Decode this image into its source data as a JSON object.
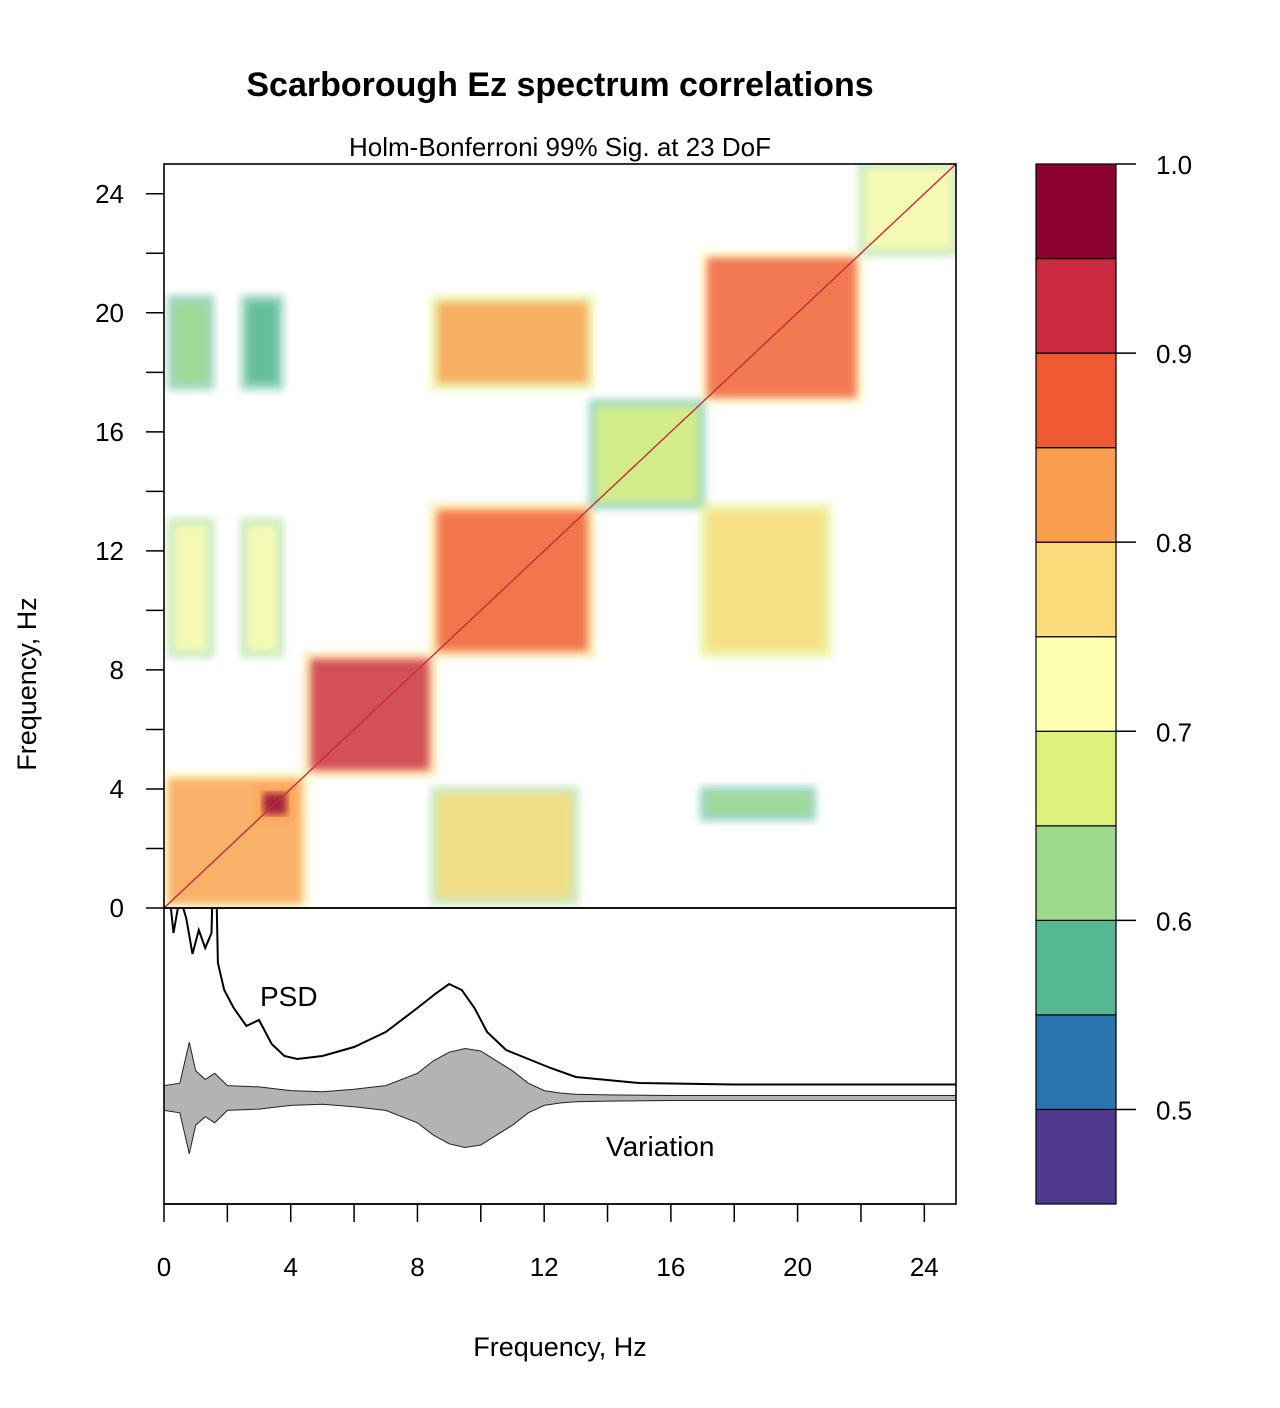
{
  "chart_data": {
    "type": "heatmap",
    "title": "Scarborough Ez spectrum correlations",
    "subtitle": "Holm-Bonferroni 99% Sig. at 23 DoF",
    "xlabel": "Frequency, Hz",
    "ylabel": "Frequency, Hz",
    "xlim": [
      0,
      25
    ],
    "ylim": [
      0,
      25
    ],
    "x_ticks": [
      "0",
      "4",
      "8",
      "12",
      "16",
      "20",
      "24"
    ],
    "y_ticks": [
      "0",
      "4",
      "8",
      "12",
      "16",
      "20",
      "24"
    ],
    "colorbar": {
      "range": [
        0.45,
        1.0
      ],
      "tick_labels": [
        "0.5",
        "0.6",
        "0.7",
        "0.8",
        "0.9",
        "1.0"
      ],
      "bins": [
        {
          "low": 0.45,
          "high": 0.5,
          "color": "#4f3a8f"
        },
        {
          "low": 0.5,
          "high": 0.55,
          "color": "#2c73b1"
        },
        {
          "low": 0.55,
          "high": 0.6,
          "color": "#55b892"
        },
        {
          "low": 0.6,
          "high": 0.65,
          "color": "#9fd98e"
        },
        {
          "low": 0.65,
          "high": 0.7,
          "color": "#def27b"
        },
        {
          "low": 0.7,
          "high": 0.75,
          "color": "#ffffb2"
        },
        {
          "low": 0.75,
          "high": 0.8,
          "color": "#fadc7a"
        },
        {
          "low": 0.8,
          "high": 0.85,
          "color": "#f99e4f"
        },
        {
          "low": 0.85,
          "high": 0.9,
          "color": "#ef5a32"
        },
        {
          "low": 0.9,
          "high": 0.95,
          "color": "#ca2a3f"
        },
        {
          "low": 0.95,
          "high": 1.0,
          "color": "#8c0233"
        }
      ]
    },
    "correlation_blocks": [
      {
        "x": [
          0,
          4.5
        ],
        "y": [
          0,
          4.5
        ],
        "level": 0.82
      },
      {
        "x": [
          3,
          4
        ],
        "y": [
          3,
          4
        ],
        "level": 0.95
      },
      {
        "x": [
          4.5,
          8.5
        ],
        "y": [
          4.5,
          8.5
        ],
        "level": 0.9
      },
      {
        "x": [
          8.5,
          13.5
        ],
        "y": [
          8.5,
          13.5
        ],
        "level": 0.88
      },
      {
        "x": [
          17,
          22
        ],
        "y": [
          17,
          22
        ],
        "level": 0.86
      },
      {
        "x": [
          13.5,
          17
        ],
        "y": [
          13.5,
          17
        ],
        "level": 0.68
      },
      {
        "x": [
          22,
          25
        ],
        "y": [
          22,
          25
        ],
        "level": 0.72
      },
      {
        "x": [
          8.5,
          13.5
        ],
        "y": [
          17.5,
          20.5
        ],
        "level": 0.8
      },
      {
        "x": [
          17,
          21
        ],
        "y": [
          8.5,
          13.5
        ],
        "level": 0.78
      },
      {
        "x": [
          0.2,
          1.5
        ],
        "y": [
          8.5,
          13
        ],
        "level": 0.72
      },
      {
        "x": [
          2.5,
          3.7
        ],
        "y": [
          8.5,
          13
        ],
        "level": 0.74
      },
      {
        "x": [
          0.2,
          1.5
        ],
        "y": [
          17.5,
          20.5
        ],
        "level": 0.6
      },
      {
        "x": [
          2.5,
          3.7
        ],
        "y": [
          17.5,
          20.5
        ],
        "level": 0.58
      },
      {
        "x": [
          8.5,
          13
        ],
        "y": [
          0.2,
          4
        ],
        "level": 0.75
      },
      {
        "x": [
          17,
          20.5
        ],
        "y": [
          3,
          4
        ],
        "level": 0.6
      }
    ],
    "lower_panel": {
      "annotations": [
        "PSD",
        "Variation"
      ],
      "series": [
        {
          "name": "PSD",
          "x": [
            0,
            0.1,
            0.3,
            0.5,
            0.7,
            0.9,
            1.1,
            1.3,
            1.5,
            1.6,
            1.7,
            1.9,
            2.2,
            2.6,
            3.0,
            3.4,
            3.8,
            4.2,
            5,
            6,
            7,
            8,
            8.6,
            9.0,
            9.4,
            9.8,
            10.2,
            10.8,
            11.5,
            12.2,
            13,
            15,
            18,
            21,
            25
          ],
          "y": [
            0.82,
            0.75,
            0.55,
            0.67,
            0.6,
            0.48,
            0.56,
            0.5,
            0.55,
            0.97,
            0.45,
            0.36,
            0.3,
            0.24,
            0.26,
            0.18,
            0.14,
            0.13,
            0.14,
            0.17,
            0.22,
            0.3,
            0.35,
            0.38,
            0.36,
            0.3,
            0.22,
            0.16,
            0.13,
            0.1,
            0.07,
            0.05,
            0.045,
            0.045,
            0.045
          ]
        },
        {
          "name": "Variation",
          "x": [
            0,
            0.5,
            0.8,
            1.0,
            1.3,
            1.6,
            2,
            3,
            4,
            5,
            6,
            7,
            8,
            8.5,
            9,
            9.5,
            10,
            10.5,
            11,
            11.5,
            12,
            12.5,
            13,
            14,
            16,
            20,
            25
          ],
          "y": [
            0.1,
            0.12,
            0.45,
            0.22,
            0.15,
            0.2,
            0.1,
            0.09,
            0.06,
            0.05,
            0.07,
            0.1,
            0.2,
            0.3,
            0.37,
            0.4,
            0.38,
            0.3,
            0.22,
            0.12,
            0.06,
            0.04,
            0.03,
            0.025,
            0.02,
            0.02,
            0.02
          ]
        }
      ]
    }
  }
}
